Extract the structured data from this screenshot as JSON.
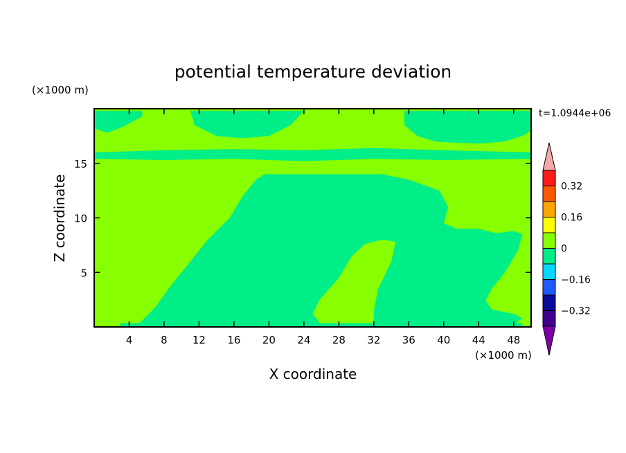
{
  "chart_data": {
    "type": "heatmap",
    "title": "potential temperature deviation",
    "xlabel": "X coordinate",
    "ylabel": "Z coordinate",
    "x_unit": "(×1000 m)",
    "y_unit": "(×1000 m)",
    "time_label": "t=1.0944e+06",
    "xlim": [
      0,
      50
    ],
    "ylim": [
      0,
      20
    ],
    "xticks": [
      4,
      8,
      12,
      16,
      20,
      24,
      28,
      32,
      36,
      40,
      44,
      48
    ],
    "yticks": [
      5,
      10,
      15
    ],
    "colorbar": {
      "levels": [
        -0.4,
        -0.32,
        -0.24,
        -0.16,
        -0.08,
        0,
        0.08,
        0.16,
        0.24,
        0.32,
        0.4
      ],
      "colors": [
        "#400090",
        "#0a0a9a",
        "#1e5aff",
        "#00d8ff",
        "#00ee88",
        "#88ff00",
        "#ffff00",
        "#ffa500",
        "#ff5a00",
        "#ff1a1a"
      ],
      "under_color": "#7e00a8",
      "over_color": "#f4a8a8",
      "labels": [
        {
          "value": 0.32,
          "text": "0.32"
        },
        {
          "value": 0.16,
          "text": "0.16"
        },
        {
          "value": 0,
          "text": "0"
        },
        {
          "value": -0.16,
          "text": "−0.16"
        },
        {
          "value": -0.32,
          "text": "−0.32"
        }
      ]
    },
    "background_field_color": "#88ff00",
    "regions": [
      {
        "name": "central-negative-anomaly",
        "band": "-0.08 to 0",
        "color": "#00ee88",
        "outline": [
          [
            5,
            0.2
          ],
          [
            7,
            1.8
          ],
          [
            8.5,
            3.5
          ],
          [
            11,
            6
          ],
          [
            13,
            8
          ],
          [
            15.5,
            10
          ],
          [
            17,
            12
          ],
          [
            18.5,
            13.5
          ],
          [
            19.5,
            14
          ],
          [
            23,
            14
          ],
          [
            27,
            14
          ],
          [
            30,
            14
          ],
          [
            33,
            14
          ],
          [
            36,
            13.5
          ],
          [
            39.5,
            12.5
          ],
          [
            40.5,
            11
          ],
          [
            40,
            9.5
          ],
          [
            41.5,
            9
          ],
          [
            44,
            9
          ],
          [
            46,
            8.6
          ],
          [
            48,
            8.8
          ],
          [
            49,
            8.5
          ],
          [
            48.5,
            7
          ],
          [
            47,
            5
          ],
          [
            45.5,
            3.5
          ],
          [
            44.8,
            2.4
          ],
          [
            45.5,
            1.6
          ],
          [
            48,
            1.2
          ],
          [
            49,
            0.8
          ],
          [
            48,
            0.2
          ]
        ]
      },
      {
        "name": "central-positive-plume",
        "band": "0 to 0.08",
        "color": "#88ff00",
        "outline": [
          [
            26,
            0.2
          ],
          [
            25,
            1.2
          ],
          [
            25.8,
            2.5
          ],
          [
            28,
            4.5
          ],
          [
            29.5,
            6.5
          ],
          [
            31,
            7.6
          ],
          [
            33,
            8
          ],
          [
            34.5,
            7.8
          ],
          [
            34,
            6
          ],
          [
            32.5,
            3.5
          ],
          [
            32,
            1.5
          ],
          [
            32,
            0.2
          ]
        ]
      },
      {
        "name": "upper-left-anomaly",
        "band": "-0.08 to 0",
        "color": "#00ee88",
        "outline": [
          [
            0,
            19.8
          ],
          [
            0,
            18.2
          ],
          [
            1.5,
            17.8
          ],
          [
            3.2,
            18.3
          ],
          [
            5.5,
            19.3
          ],
          [
            5.5,
            19.8
          ]
        ]
      },
      {
        "name": "upper-center-anomaly",
        "band": "-0.08 to 0",
        "color": "#00ee88",
        "outline": [
          [
            11,
            19.8
          ],
          [
            11.5,
            18.5
          ],
          [
            14,
            17.5
          ],
          [
            17,
            17.3
          ],
          [
            20,
            17.5
          ],
          [
            22.5,
            18.5
          ],
          [
            24,
            19.8
          ]
        ]
      },
      {
        "name": "upper-right-anomaly",
        "band": "-0.08 to 0",
        "color": "#00ee88",
        "outline": [
          [
            35.5,
            19.8
          ],
          [
            35.5,
            18.5
          ],
          [
            37,
            17.5
          ],
          [
            39,
            17
          ],
          [
            41,
            16.9
          ],
          [
            44,
            16.8
          ],
          [
            47,
            17
          ],
          [
            49,
            17.5
          ],
          [
            50,
            18
          ],
          [
            50,
            19.8
          ]
        ]
      },
      {
        "name": "tropopause-layer",
        "band": "-0.08 to 0",
        "color": "#00ee88",
        "outline": [
          [
            0,
            16
          ],
          [
            8,
            16.2
          ],
          [
            16,
            16.3
          ],
          [
            24,
            16.2
          ],
          [
            32,
            16.4
          ],
          [
            40,
            16.2
          ],
          [
            50,
            16
          ],
          [
            50,
            15.4
          ],
          [
            40,
            15.3
          ],
          [
            32,
            15.4
          ],
          [
            24,
            15.2
          ],
          [
            16,
            15.4
          ],
          [
            8,
            15.3
          ],
          [
            0,
            15.4
          ]
        ]
      },
      {
        "name": "bottom-boundary-strip",
        "band": "-0.08 to 0",
        "color": "#00ee88",
        "outline": [
          [
            3,
            0
          ],
          [
            49,
            0
          ],
          [
            49,
            0.35
          ],
          [
            3,
            0.35
          ]
        ]
      }
    ]
  }
}
